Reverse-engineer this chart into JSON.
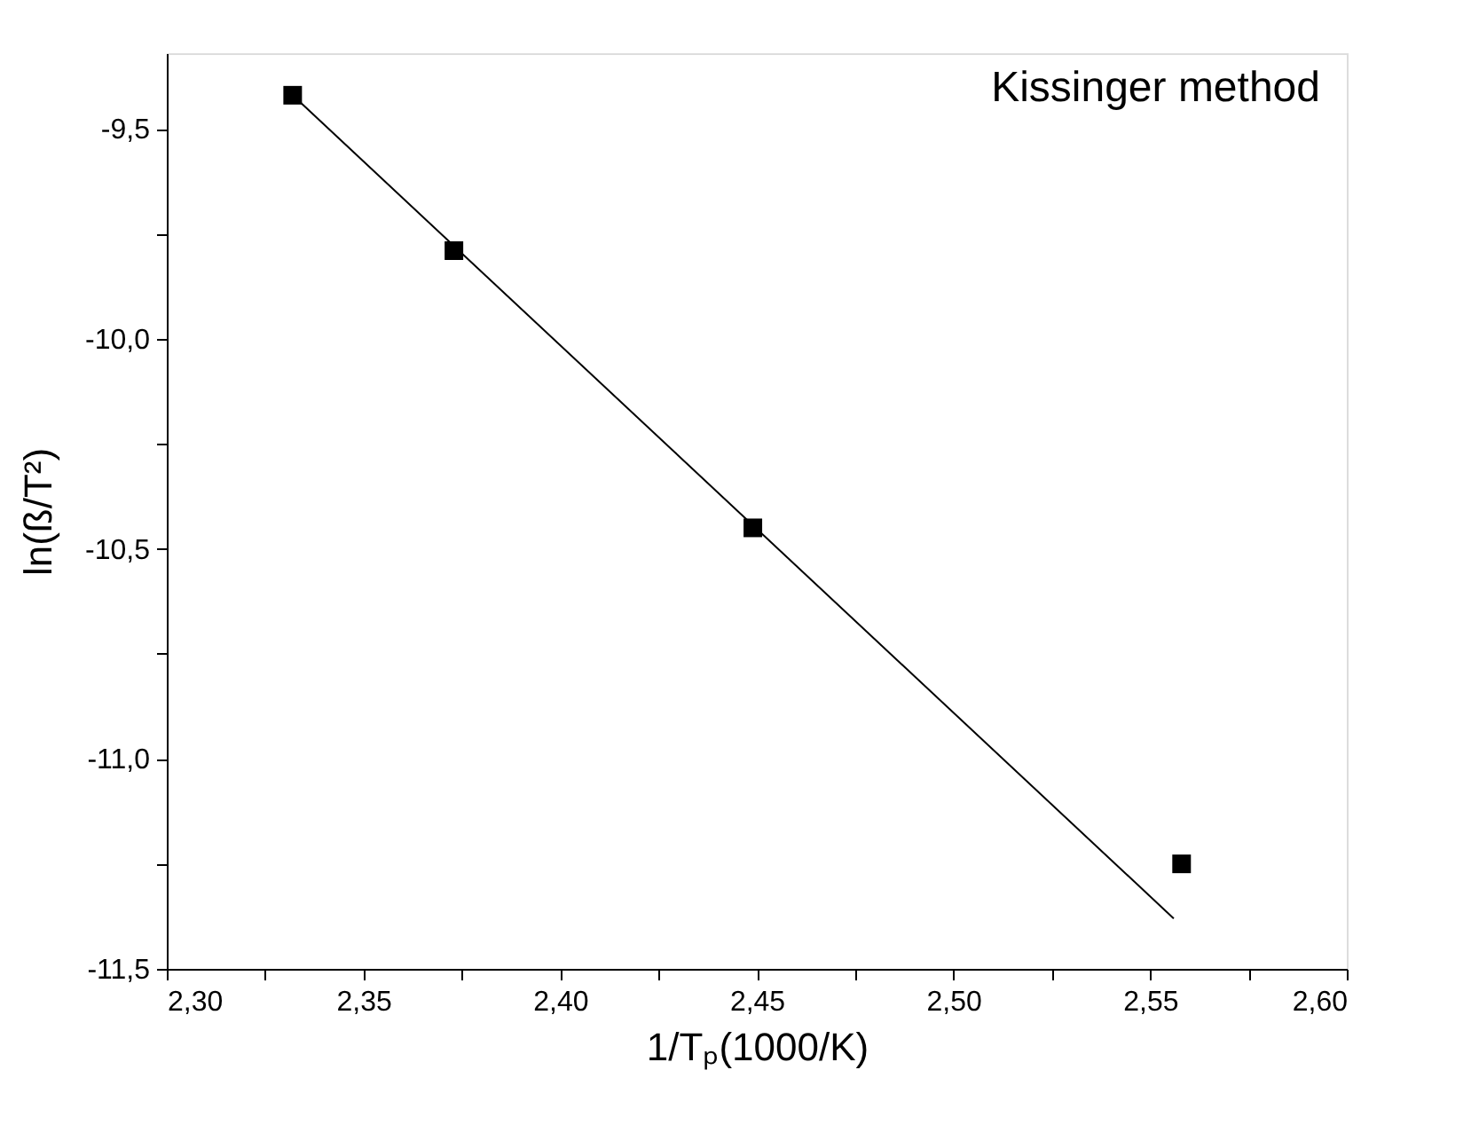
{
  "chart_data": {
    "type": "scatter",
    "xlabel": "1/Tₚ(1000/K)",
    "ylabel": "ln(ß/T²)",
    "annotations": [
      "Kissinger method"
    ],
    "series": [
      {
        "type": "scatter",
        "color": "#000000",
        "marker": "square",
        "x": [
          2.332,
          2.373,
          2.449,
          2.558
        ],
        "values": [
          -9.42,
          -9.79,
          -10.45,
          -11.25
        ]
      },
      {
        "type": "line",
        "color": "#000000",
        "marker": "none",
        "line_style": "solid",
        "x": [
          2.332,
          2.556
        ],
        "values": [
          -9.42,
          -11.38
        ]
      }
    ],
    "xlim": [
      2.3,
      2.6
    ],
    "ylim": [
      -11.5,
      -9.32
    ],
    "xticks": [
      {
        "value": 2.3,
        "label": "2,30"
      },
      {
        "value": 2.325,
        "label": null
      },
      {
        "value": 2.35,
        "label": "2,35"
      },
      {
        "value": 2.375,
        "label": null
      },
      {
        "value": 2.4,
        "label": "2,40"
      },
      {
        "value": 2.425,
        "label": null
      },
      {
        "value": 2.45,
        "label": "2,45"
      },
      {
        "value": 2.475,
        "label": null
      },
      {
        "value": 2.5,
        "label": "2,50"
      },
      {
        "value": 2.525,
        "label": null
      },
      {
        "value": 2.55,
        "label": "2,55"
      },
      {
        "value": 2.575,
        "label": null
      },
      {
        "value": 2.6,
        "label": "2,60"
      }
    ],
    "yticks": [
      {
        "value": -11.5,
        "label": "-11,5"
      },
      {
        "value": -11.25,
        "label": null
      },
      {
        "value": -11.0,
        "label": "-11,0"
      },
      {
        "value": -10.75,
        "label": null
      },
      {
        "value": -10.5,
        "label": "-10,5"
      },
      {
        "value": -10.25,
        "label": null
      },
      {
        "value": -10.0,
        "label": "-10,0"
      },
      {
        "value": -9.75,
        "label": null
      },
      {
        "value": -9.5,
        "label": "-9,5"
      }
    ],
    "grid": false
  }
}
